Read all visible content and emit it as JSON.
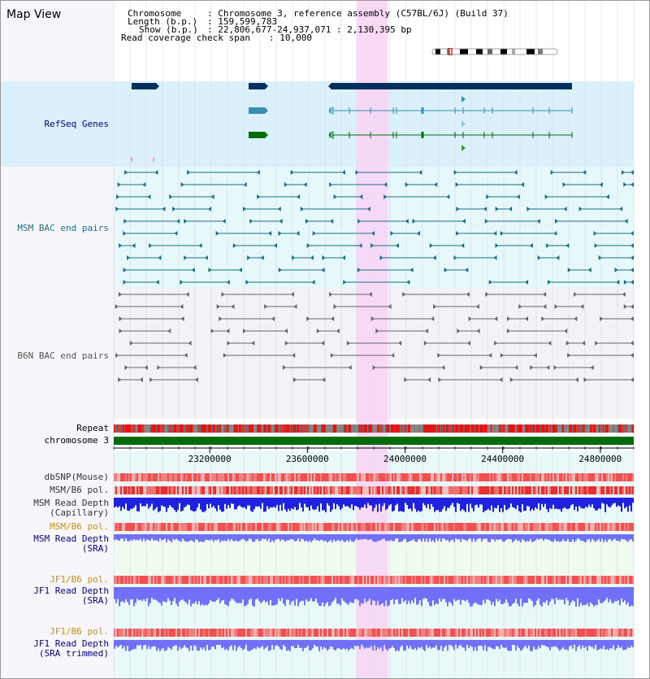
{
  "page": {
    "title": "Map View"
  },
  "info": {
    "chromosome_label": "Chromosome",
    "chromosome_value": "Chromosome 3, reference assembly (C57BL/6J) (Build 37)",
    "length_label": "Length (b.p.)",
    "length_value": "159,599,783",
    "show_label": "Show (b.p.)",
    "show_value": "22,806,677-24,937,071 : 2,130,395 bp",
    "coverage_label": "Read coverage check span",
    "coverage_value": "10,000"
  },
  "tracks": {
    "refseq": "RefSeq Genes",
    "msm_bac": "MSM BAC end pairs",
    "b6n_bac": "B6N BAC end pairs",
    "repeat": "Repeat",
    "chromosome": "chromosome 3",
    "dbsnp": "dbSNP(Mouse)",
    "msm_b6_pol": "MSM/B6 pol.",
    "msm_depth_cap": "MSM Read Depth\n(Capillary)",
    "msm_b6_pol_2": "MSM/B6 pol.",
    "msm_depth_sra": "MSM Read Depth\n(SRA)",
    "jf1_b6_pol": "JF1/B6 pol.",
    "jf1_depth_sra": "JF1 Read Depth\n(SRA)",
    "jf1_b6_pol_2": "JF1/B6 pol.",
    "jf1_depth_trim": "JF1 Read Depth\n(SRA trimmed)"
  },
  "axis": {
    "ticks": [
      {
        "label": "23200000",
        "value": 23200000
      },
      {
        "label": "23600000",
        "value": 23600000
      },
      {
        "label": "24000000",
        "value": 24000000
      },
      {
        "label": "24400000",
        "value": 24400000
      },
      {
        "label": "24800000",
        "value": 24800000
      }
    ],
    "range": [
      22806677,
      24937071
    ]
  },
  "highlight": {
    "start": 23800000,
    "end": 23930000
  },
  "colors": {
    "refseq_bg": "#daf0fa",
    "bac_bg": "#e6f8fa",
    "gene_dark": "#05305e",
    "gene_teal": "#3a8fb0",
    "gene_green": "#036b0b",
    "msm_pair": "#1a6e88",
    "b6n_pair": "#666666",
    "repeat_red": "#e81010",
    "chromosome": "#036b0b",
    "highlight": "#f8d4f4",
    "depth_blue": "#2020e0",
    "depth_light": "#7070f8",
    "label_navy": "#00008b",
    "label_orange": "#d09000",
    "label_teal": "#1a6e88"
  }
}
